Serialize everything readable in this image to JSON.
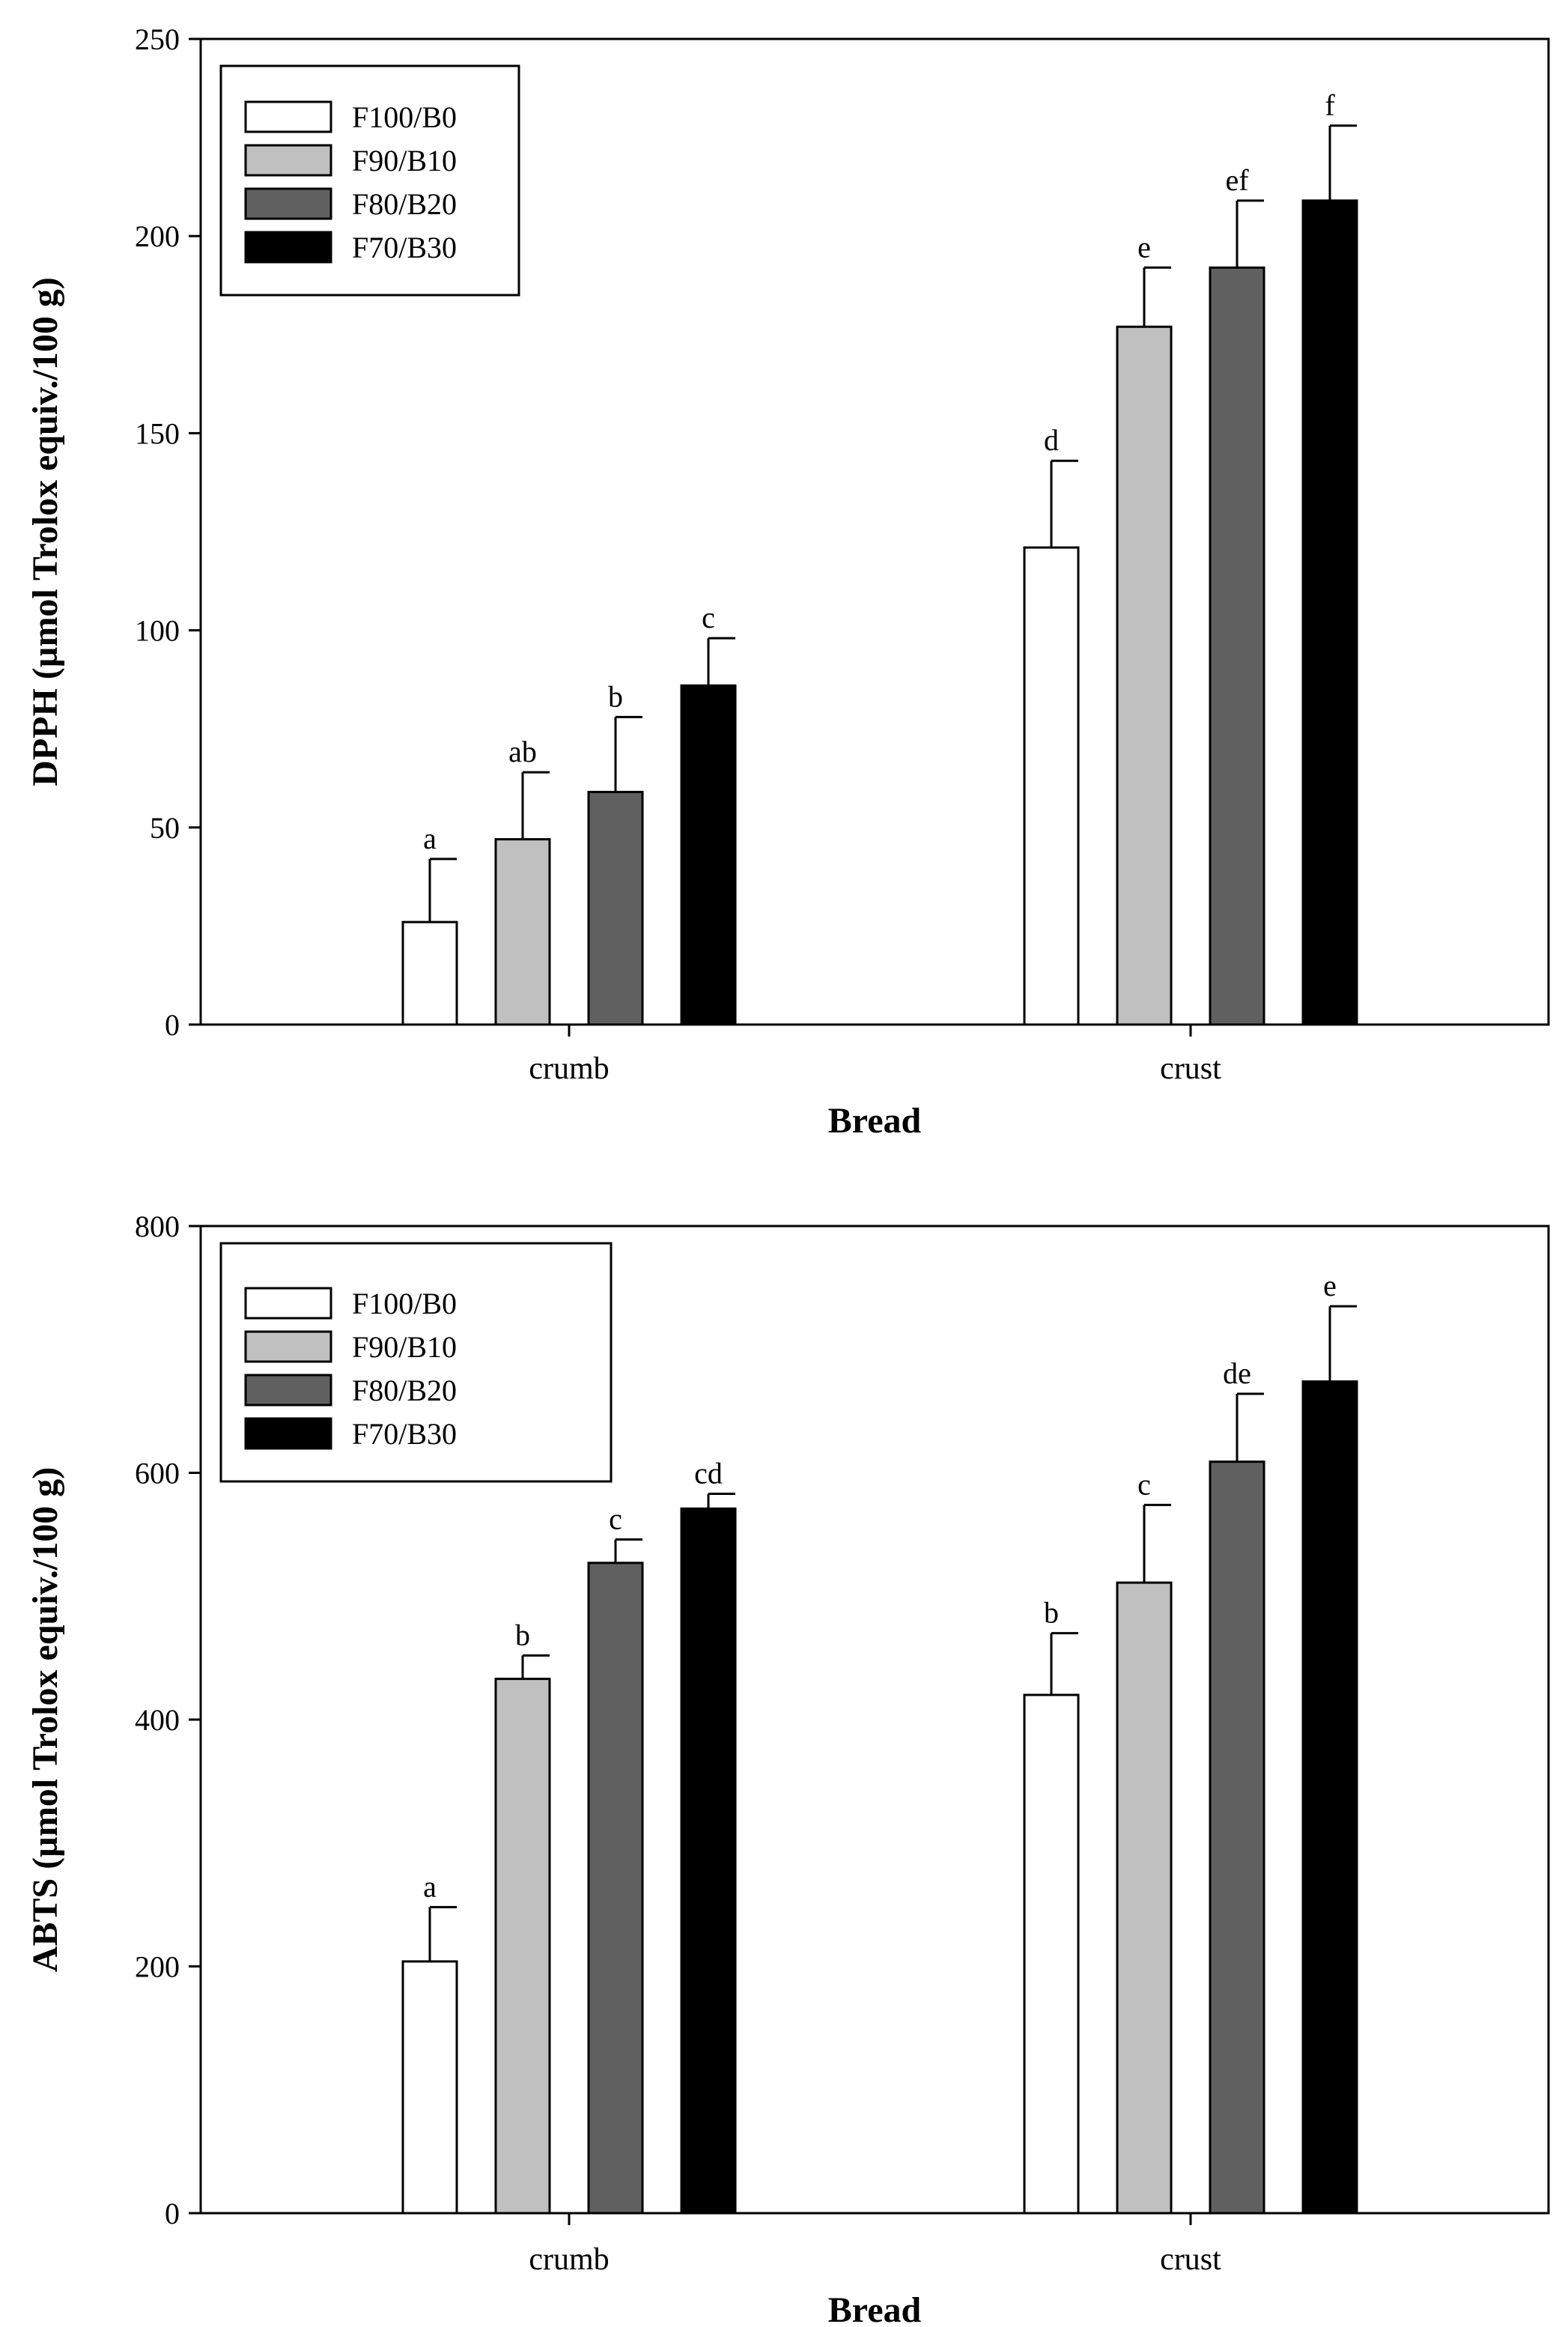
{
  "chart_data": [
    {
      "type": "bar",
      "title": "",
      "xlabel": "Bread",
      "ylabel": "DPPH (µmol Trolox equiv./100 g)",
      "ylim": [
        0,
        250
      ],
      "yticks": [
        0,
        50,
        100,
        150,
        200,
        250
      ],
      "categories": [
        "crumb",
        "crust"
      ],
      "legend_position": "top-left",
      "series": [
        {
          "name": "F100/B0",
          "color": "#ffffff",
          "values": [
            26,
            121
          ],
          "errors": [
            16,
            22
          ],
          "labels": [
            "a",
            "d"
          ]
        },
        {
          "name": "F90/B10",
          "color": "#c0c0c0",
          "values": [
            47,
            177
          ],
          "errors": [
            17,
            15
          ],
          "labels": [
            "ab",
            "e"
          ]
        },
        {
          "name": "F80/B20",
          "color": "#606060",
          "values": [
            59,
            192
          ],
          "errors": [
            19,
            17
          ],
          "labels": [
            "b",
            "ef"
          ]
        },
        {
          "name": "F70/B30",
          "color": "#000000",
          "values": [
            86,
            209
          ],
          "errors": [
            12,
            19
          ],
          "labels": [
            "c",
            "f"
          ]
        }
      ]
    },
    {
      "type": "bar",
      "title": "",
      "xlabel": "Bread",
      "ylabel": "ABTS (µmol Trolox equiv./100 g)",
      "ylim": [
        0,
        800
      ],
      "yticks": [
        0,
        200,
        400,
        600,
        800
      ],
      "categories": [
        "crumb",
        "crust"
      ],
      "legend_position": "top-left",
      "series": [
        {
          "name": "F100/B0",
          "color": "#ffffff",
          "values": [
            204,
            420
          ],
          "errors": [
            44,
            50
          ],
          "labels": [
            "a",
            "b"
          ]
        },
        {
          "name": "F90/B10",
          "color": "#c0c0c0",
          "values": [
            433,
            511
          ],
          "errors": [
            19,
            63
          ],
          "labels": [
            "b",
            "c"
          ]
        },
        {
          "name": "F80/B20",
          "color": "#606060",
          "values": [
            527,
            609
          ],
          "errors": [
            19,
            55
          ],
          "labels": [
            "c",
            "de"
          ]
        },
        {
          "name": "F70/B30",
          "color": "#000000",
          "values": [
            571,
            674
          ],
          "errors": [
            12,
            61
          ],
          "labels": [
            "cd",
            "e"
          ]
        }
      ]
    }
  ]
}
